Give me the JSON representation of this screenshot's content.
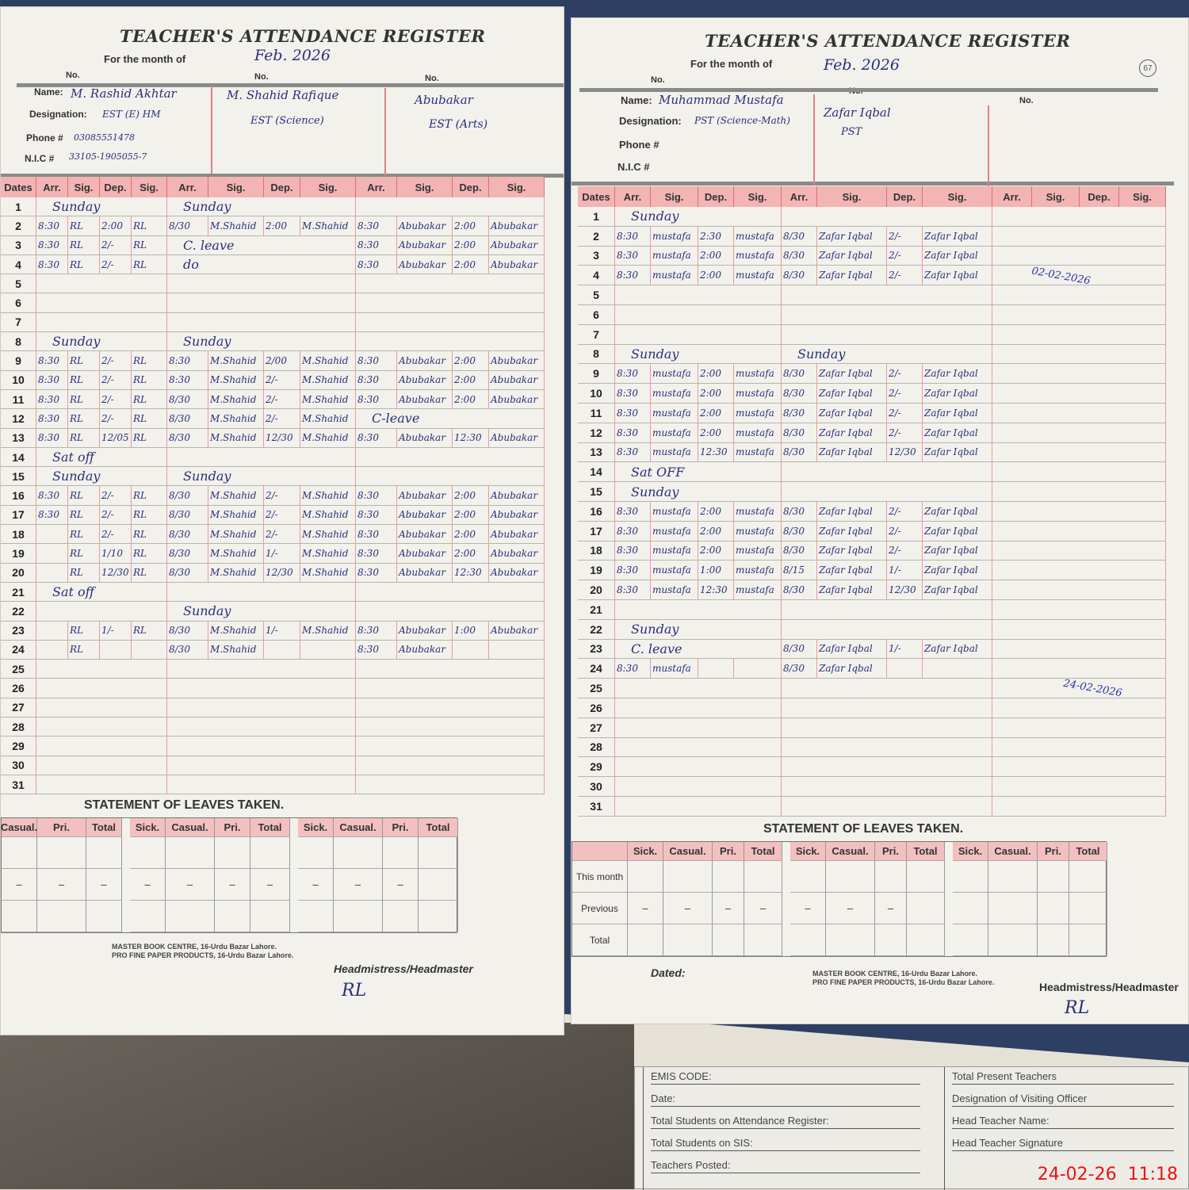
{
  "register_title": "TEACHER'S ATTENDANCE REGISTER",
  "month_label": "For the month of",
  "no_label": "No.",
  "name_label": "Name:",
  "designation_label": "Designation:",
  "phone_label": "Phone #",
  "nic_label": "N.I.C #",
  "column_headers": [
    "Dates",
    "Arr.",
    "Sig.",
    "Dep.",
    "Sig.",
    "Arr.",
    "Sig.",
    "Dep.",
    "Sig.",
    "Arr.",
    "Sig.",
    "Dep.",
    "Sig."
  ],
  "statement_title": "STATEMENT OF LEAVES TAKEN.",
  "leave_headers": [
    "Sick.",
    "Casual.",
    "Pri.",
    "Total"
  ],
  "leave_row_labels": [
    "This month",
    "Previous",
    "Total"
  ],
  "publisher_1": "MASTER BOOK CENTRE, 16-Urdu Bazar Lahore.",
  "publisher_2": "PRO FINE PAPER PRODUCTS, 16-Urdu Bazar Lahore.",
  "headmaster_label": "Headmistress/Headmaster",
  "dated_label": "Dated:",
  "ink_color": "#2a2f7a",
  "left_page": {
    "month": "Feb. 2026",
    "teachers": [
      {
        "name": "M. Rashid Akhtar",
        "designation": "EST (E) HM",
        "phone": "03085551478",
        "nic": "33105-1905055-7"
      },
      {
        "name": "M. Shahid Rafique",
        "designation": "EST (Science)"
      },
      {
        "name": "Abubakar",
        "designation": "EST (Arts)"
      }
    ],
    "rows": [
      {
        "d": "1",
        "t": [
          "Sunday",
          "Sunday",
          ""
        ]
      },
      {
        "d": "2",
        "t": [
          [
            "8:30",
            "RL",
            "2:00",
            "RL"
          ],
          [
            "8/30",
            "M.Shahid",
            "2:00",
            "M.Shahid"
          ],
          [
            "8:30",
            "Abubakar",
            "2:00",
            "Abubakar"
          ]
        ]
      },
      {
        "d": "3",
        "t": [
          [
            "8:30",
            "RL",
            "2/-",
            "RL"
          ],
          "C. leave",
          [
            "8:30",
            "Abubakar",
            "2:00",
            "Abubakar"
          ]
        ]
      },
      {
        "d": "4",
        "t": [
          [
            "8:30",
            "RL",
            "2/-",
            "RL"
          ],
          "do",
          [
            "8:30",
            "Abubakar",
            "2:00",
            "Abubakar"
          ]
        ]
      },
      {
        "d": "5",
        "t": [
          "",
          "",
          ""
        ]
      },
      {
        "d": "6",
        "t": [
          "",
          "",
          ""
        ]
      },
      {
        "d": "7",
        "t": [
          "",
          "",
          ""
        ]
      },
      {
        "d": "8",
        "t": [
          "Sunday",
          "Sunday",
          ""
        ]
      },
      {
        "d": "9",
        "t": [
          [
            "8:30",
            "RL",
            "2/-",
            "RL"
          ],
          [
            "8:30",
            "M.Shahid",
            "2/00",
            "M.Shahid"
          ],
          [
            "8:30",
            "Abubakar",
            "2:00",
            "Abubakar"
          ]
        ]
      },
      {
        "d": "10",
        "t": [
          [
            "8:30",
            "RL",
            "2/-",
            "RL"
          ],
          [
            "8:30",
            "M.Shahid",
            "2/-",
            "M.Shahid"
          ],
          [
            "8:30",
            "Abubakar",
            "2:00",
            "Abubakar"
          ]
        ]
      },
      {
        "d": "11",
        "t": [
          [
            "8:30",
            "RL",
            "2/-",
            "RL"
          ],
          [
            "8/30",
            "M.Shahid",
            "2/-",
            "M.Shahid"
          ],
          [
            "8:30",
            "Abubakar",
            "2:00",
            "Abubakar"
          ]
        ]
      },
      {
        "d": "12",
        "t": [
          [
            "8:30",
            "RL",
            "2/-",
            "RL"
          ],
          [
            "8/30",
            "M.Shahid",
            "2/-",
            "M.Shahid"
          ],
          "C-leave"
        ]
      },
      {
        "d": "13",
        "t": [
          [
            "8:30",
            "RL",
            "12/05",
            "RL"
          ],
          [
            "8/30",
            "M.Shahid",
            "12/30",
            "M.Shahid"
          ],
          [
            "8:30",
            "Abubakar",
            "12:30",
            "Abubakar"
          ]
        ]
      },
      {
        "d": "14",
        "t": [
          "Sat off",
          "",
          ""
        ]
      },
      {
        "d": "15",
        "t": [
          "Sunday",
          "Sunday",
          ""
        ]
      },
      {
        "d": "16",
        "t": [
          [
            "8:30",
            "RL",
            "2/-",
            "RL"
          ],
          [
            "8/30",
            "M.Shahid",
            "2/-",
            "M.Shahid"
          ],
          [
            "8:30",
            "Abubakar",
            "2:00",
            "Abubakar"
          ]
        ]
      },
      {
        "d": "17",
        "t": [
          [
            "8:30",
            "RL",
            "2/-",
            "RL"
          ],
          [
            "8/30",
            "M.Shahid",
            "2/-",
            "M.Shahid"
          ],
          [
            "8:30",
            "Abubakar",
            "2:00",
            "Abubakar"
          ]
        ]
      },
      {
        "d": "18",
        "t": [
          [
            "",
            "RL",
            "2/-",
            "RL"
          ],
          [
            "8/30",
            "M.Shahid",
            "2/-",
            "M.Shahid"
          ],
          [
            "8:30",
            "Abubakar",
            "2:00",
            "Abubakar"
          ]
        ]
      },
      {
        "d": "19",
        "t": [
          [
            "",
            "RL",
            "1/10",
            "RL"
          ],
          [
            "8/30",
            "M.Shahid",
            "1/-",
            "M.Shahid"
          ],
          [
            "8:30",
            "Abubakar",
            "2:00",
            "Abubakar"
          ]
        ]
      },
      {
        "d": "20",
        "t": [
          [
            "",
            "RL",
            "12/30",
            "RL"
          ],
          [
            "8/30",
            "M.Shahid",
            "12/30",
            "M.Shahid"
          ],
          [
            "8:30",
            "Abubakar",
            "12:30",
            "Abubakar"
          ]
        ]
      },
      {
        "d": "21",
        "t": [
          "Sat off",
          "",
          ""
        ]
      },
      {
        "d": "22",
        "t": [
          "",
          "Sunday",
          ""
        ]
      },
      {
        "d": "23",
        "t": [
          [
            "",
            "RL",
            "1/-",
            "RL"
          ],
          [
            "8/30",
            "M.Shahid",
            "1/-",
            "M.Shahid"
          ],
          [
            "8:30",
            "Abubakar",
            "1:00",
            "Abubakar"
          ]
        ]
      },
      {
        "d": "24",
        "t": [
          [
            "",
            "RL",
            "",
            ""
          ],
          [
            "8/30",
            "M.Shahid",
            "",
            ""
          ],
          [
            "8:30",
            "Abubakar",
            "",
            ""
          ]
        ]
      },
      {
        "d": "25",
        "t": [
          "",
          "",
          ""
        ]
      },
      {
        "d": "26",
        "t": [
          "",
          "",
          ""
        ]
      },
      {
        "d": "27",
        "t": [
          "",
          "",
          ""
        ]
      },
      {
        "d": "28",
        "t": [
          "",
          "",
          ""
        ]
      },
      {
        "d": "29",
        "t": [
          "",
          "",
          ""
        ]
      },
      {
        "d": "30",
        "t": [
          "",
          "",
          ""
        ]
      },
      {
        "d": "31",
        "t": [
          "",
          "",
          ""
        ]
      }
    ],
    "leave_previous": [
      "–",
      "–",
      "–",
      "–",
      "–",
      "–",
      "–",
      "–",
      "–",
      "–"
    ],
    "headmaster_signature": "RL"
  },
  "right_page": {
    "page_number": "67",
    "month": "Feb. 2026",
    "teachers": [
      {
        "name": "Muhammad Mustafa",
        "designation": "PST (Science-Math)"
      },
      {
        "name": "Zafar Iqbal",
        "designation": "PST"
      },
      {
        "name": "",
        "designation": ""
      }
    ],
    "rows": [
      {
        "d": "1",
        "t": [
          "Sunday",
          "",
          ""
        ]
      },
      {
        "d": "2",
        "t": [
          [
            "8:30",
            "mustafa",
            "2:30",
            "mustafa"
          ],
          [
            "8/30",
            "Zafar Iqbal",
            "2/-",
            "Zafar Iqbal"
          ],
          ""
        ]
      },
      {
        "d": "3",
        "t": [
          [
            "8:30",
            "mustafa",
            "2:00",
            "mustafa"
          ],
          [
            "8/30",
            "Zafar Iqbal",
            "2/-",
            "Zafar Iqbal"
          ],
          ""
        ]
      },
      {
        "d": "4",
        "t": [
          [
            "8:30",
            "mustafa",
            "2:00",
            "mustafa"
          ],
          [
            "8/30",
            "Zafar Iqbal",
            "2/-",
            "Zafar Iqbal"
          ],
          ""
        ]
      },
      {
        "d": "5",
        "t": [
          "",
          "",
          ""
        ]
      },
      {
        "d": "6",
        "t": [
          "",
          "",
          ""
        ]
      },
      {
        "d": "7",
        "t": [
          "",
          "",
          ""
        ]
      },
      {
        "d": "8",
        "t": [
          "Sunday",
          "Sunday",
          ""
        ]
      },
      {
        "d": "9",
        "t": [
          [
            "8:30",
            "mustafa",
            "2:00",
            "mustafa"
          ],
          [
            "8/30",
            "Zafar Iqbal",
            "2/-",
            "Zafar Iqbal"
          ],
          ""
        ]
      },
      {
        "d": "10",
        "t": [
          [
            "8:30",
            "mustafa",
            "2:00",
            "mustafa"
          ],
          [
            "8/30",
            "Zafar Iqbal",
            "2/-",
            "Zafar Iqbal"
          ],
          ""
        ]
      },
      {
        "d": "11",
        "t": [
          [
            "8:30",
            "mustafa",
            "2:00",
            "mustafa"
          ],
          [
            "8/30",
            "Zafar Iqbal",
            "2/-",
            "Zafar Iqbal"
          ],
          ""
        ]
      },
      {
        "d": "12",
        "t": [
          [
            "8:30",
            "mustafa",
            "2:00",
            "mustafa"
          ],
          [
            "8/30",
            "Zafar Iqbal",
            "2/-",
            "Zafar Iqbal"
          ],
          ""
        ]
      },
      {
        "d": "13",
        "t": [
          [
            "8:30",
            "mustafa",
            "12:30",
            "mustafa"
          ],
          [
            "8/30",
            "Zafar Iqbal",
            "12/30",
            "Zafar Iqbal"
          ],
          ""
        ]
      },
      {
        "d": "14",
        "t": [
          "Sat OFF",
          "",
          ""
        ]
      },
      {
        "d": "15",
        "t": [
          "Sunday",
          "",
          ""
        ]
      },
      {
        "d": "16",
        "t": [
          [
            "8:30",
            "mustafa",
            "2:00",
            "mustafa"
          ],
          [
            "8/30",
            "Zafar Iqbal",
            "2/-",
            "Zafar Iqbal"
          ],
          ""
        ]
      },
      {
        "d": "17",
        "t": [
          [
            "8:30",
            "mustafa",
            "2:00",
            "mustafa"
          ],
          [
            "8/30",
            "Zafar Iqbal",
            "2/-",
            "Zafar Iqbal"
          ],
          ""
        ]
      },
      {
        "d": "18",
        "t": [
          [
            "8:30",
            "mustafa",
            "2:00",
            "mustafa"
          ],
          [
            "8/30",
            "Zafar Iqbal",
            "2/-",
            "Zafar Iqbal"
          ],
          ""
        ]
      },
      {
        "d": "19",
        "t": [
          [
            "8:30",
            "mustafa",
            "1:00",
            "mustafa"
          ],
          [
            "8/15",
            "Zafar Iqbal",
            "1/-",
            "Zafar Iqbal"
          ],
          ""
        ]
      },
      {
        "d": "20",
        "t": [
          [
            "8:30",
            "mustafa",
            "12:30",
            "mustafa"
          ],
          [
            "8/30",
            "Zafar Iqbal",
            "12/30",
            "Zafar Iqbal"
          ],
          ""
        ]
      },
      {
        "d": "21",
        "t": [
          "",
          "",
          ""
        ]
      },
      {
        "d": "22",
        "t": [
          "Sunday",
          "",
          ""
        ]
      },
      {
        "d": "23",
        "t": [
          "C. leave",
          [
            "8/30",
            "Zafar Iqbal",
            "1/-",
            "Zafar Iqbal"
          ],
          ""
        ]
      },
      {
        "d": "24",
        "t": [
          [
            "8:30",
            "mustafa",
            "",
            ""
          ],
          [
            "8/30",
            "Zafar Iqbal",
            "",
            ""
          ],
          ""
        ]
      },
      {
        "d": "25",
        "t": [
          "",
          "",
          ""
        ]
      },
      {
        "d": "26",
        "t": [
          "",
          "",
          ""
        ]
      },
      {
        "d": "27",
        "t": [
          "",
          "",
          ""
        ]
      },
      {
        "d": "28",
        "t": [
          "",
          "",
          ""
        ]
      },
      {
        "d": "29",
        "t": [
          "",
          "",
          ""
        ]
      },
      {
        "d": "30",
        "t": [
          "",
          "",
          ""
        ]
      },
      {
        "d": "31",
        "t": [
          "",
          "",
          ""
        ]
      }
    ],
    "visit_note_1": "02-02-2026",
    "visit_note_2": "24-02-2026",
    "leave_previous": [
      "–",
      "–",
      "–",
      "–",
      "–",
      "–",
      "–"
    ],
    "headmaster_signature": "RL"
  },
  "visit_form": {
    "fields": [
      "EMIS CODE:",
      "Date:",
      "Total Students on Attendance Register:",
      "Total Students on SIS:",
      "Teachers Posted:"
    ],
    "fields_right": [
      "Total Present Teachers",
      "Designation of Visiting Officer",
      "Head Teacher Name:",
      "Head Teacher Signature"
    ]
  },
  "timestamp": "24-02-26  11:18"
}
